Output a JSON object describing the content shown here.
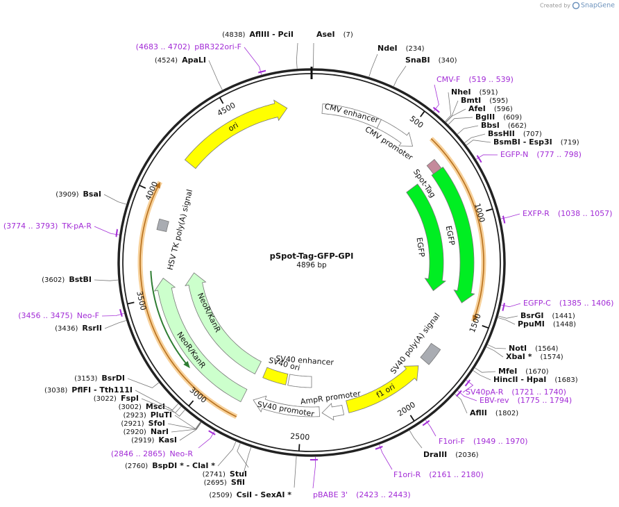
{
  "header": {
    "credit": "Created by",
    "brand": "SnapGene"
  },
  "map": {
    "title": "pSpot-Tag-GFP-GPI",
    "length": "4896 bp",
    "ticks": [
      500,
      1000,
      1500,
      2000,
      2500,
      3000,
      3500,
      4000,
      4500
    ],
    "features": [
      {
        "label": "ori"
      },
      {
        "label": "CMV enhancer"
      },
      {
        "label": "CMV promoter"
      },
      {
        "label": "Spot-Tag"
      },
      {
        "label": "EGFP"
      },
      {
        "label": "EGFP"
      },
      {
        "label": "SV40 poly(A) signal"
      },
      {
        "label": "f1 ori"
      },
      {
        "label": "AmpR promoter"
      },
      {
        "label": "SV40 promoter"
      },
      {
        "label": "SV40 ori"
      },
      {
        "label": "SV40 enhancer"
      },
      {
        "label": "NeoR/KanR"
      },
      {
        "label": "NeoR/KanR"
      },
      {
        "label": "HSV TK poly(A) signal"
      }
    ],
    "enzymes": [
      {
        "name": "AflIII  - PciI",
        "site": "(4838)"
      },
      {
        "name": "AseI",
        "site": "(7)"
      },
      {
        "name": "NdeI",
        "site": "(234)"
      },
      {
        "name": "SnaBI",
        "site": "(340)"
      },
      {
        "name": "NheI",
        "site": "(591)"
      },
      {
        "name": "BmtI",
        "site": "(595)"
      },
      {
        "name": "AfeI",
        "site": "(596)"
      },
      {
        "name": "BglII",
        "site": "(609)"
      },
      {
        "name": "BbsI",
        "site": "(662)"
      },
      {
        "name": "BssHII",
        "site": "(707)"
      },
      {
        "name": "BsmBI  - Esp3I",
        "site": "(719)"
      },
      {
        "name": "BsrGI",
        "site": "(1441)"
      },
      {
        "name": "PpuMI",
        "site": "(1448)"
      },
      {
        "name": "NotI",
        "site": "(1564)"
      },
      {
        "name": "XbaI *",
        "site": "(1574)"
      },
      {
        "name": "MfeI",
        "site": "(1670)"
      },
      {
        "name": "HincII  - HpaI",
        "site": "(1683)"
      },
      {
        "name": "AflII",
        "site": "(1802)"
      },
      {
        "name": "DraIII",
        "site": "(2036)"
      },
      {
        "name": "CsiI  - SexAI *",
        "site": "(2509)"
      },
      {
        "name": "SfiI",
        "site": "(2695)"
      },
      {
        "name": "StuI",
        "site": "(2741)"
      },
      {
        "name": "BspDI *  - ClaI *",
        "site": "(2760)"
      },
      {
        "name": "KasI",
        "site": "(2919)"
      },
      {
        "name": "NarI",
        "site": "(2920)"
      },
      {
        "name": "SfoI",
        "site": "(2921)"
      },
      {
        "name": "PluTI",
        "site": "(2923)"
      },
      {
        "name": "MscI",
        "site": "(3002)"
      },
      {
        "name": "FspI",
        "site": "(3022)"
      },
      {
        "name": "PflFI  - Tth111I",
        "site": "(3038)"
      },
      {
        "name": "BsrDI",
        "site": "(3153)"
      },
      {
        "name": "RsrII",
        "site": "(3436)"
      },
      {
        "name": "BstBI",
        "site": "(3602)"
      },
      {
        "name": "BsaI",
        "site": "(3909)"
      },
      {
        "name": "ApaLI",
        "site": "(4524)"
      }
    ],
    "primers": [
      {
        "name": "pBR322ori-F",
        "range": "(4683 .. 4702)"
      },
      {
        "name": "CMV-F",
        "range": "(519 .. 539)"
      },
      {
        "name": "EGFP-N",
        "range": "(777 .. 798)"
      },
      {
        "name": "EXFP-R",
        "range": "(1038 .. 1057)"
      },
      {
        "name": "EGFP-C",
        "range": "(1385 .. 1406)"
      },
      {
        "name": "SV40pA-R",
        "range": "(1721 .. 1740)"
      },
      {
        "name": "EBV-rev",
        "range": "(1775 .. 1794)"
      },
      {
        "name": "F1ori-F",
        "range": "(1949 .. 1970)"
      },
      {
        "name": "F1ori-R",
        "range": "(2161 .. 2180)"
      },
      {
        "name": "pBABE 3'",
        "range": "(2423 .. 2443)"
      },
      {
        "name": "Neo-R",
        "range": "(2846 .. 2865)"
      },
      {
        "name": "Neo-F",
        "range": "(3456 .. 3475)"
      },
      {
        "name": "TK-pA-R",
        "range": "(3774 .. 3793)"
      }
    ]
  }
}
